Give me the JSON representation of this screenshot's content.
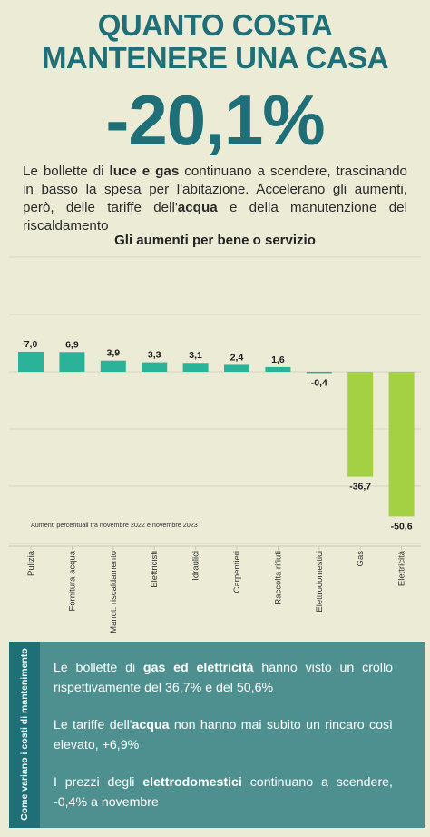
{
  "header": {
    "title_line1": "QUANTO COSTA",
    "title_line2": "MANTENERE UNA CASA",
    "headline_value": "-20,1%"
  },
  "intro": {
    "p1": "Le bollette di ",
    "b1": "luce e gas",
    "p2": " continuano a scendere, trascinando in basso la spesa per l'abitazione. Accelerano gli aumenti, però, delle tariffe dell'",
    "b2": "acqua",
    "p3": " e della manutenzione del riscaldamento"
  },
  "chart_data": {
    "type": "bar",
    "title": "Gli aumenti per bene o servizio",
    "note": "Aumenti percentuali tra novembre 2022 e novembre 2023",
    "categories": [
      "Pulizia",
      "Fornitura acqua",
      "Manut. riscaldamento",
      "Elettricisti",
      "Idraulici",
      "Carpentieri",
      "Raccolta rifiuti",
      "Elettrodomestici",
      "Gas",
      "Elettricità"
    ],
    "values": [
      7.0,
      6.9,
      3.9,
      3.3,
      3.1,
      2.4,
      1.6,
      -0.4,
      -36.7,
      -50.6
    ],
    "value_labels": [
      "7,0",
      "6,9",
      "3,9",
      "3,3",
      "3,1",
      "2,4",
      "1,6",
      "-0,4",
      "-36,7",
      "-50,6"
    ],
    "colors": {
      "positive": "#2bb39a",
      "negative_small": "#2bb39a",
      "negative_large": "#a4d144"
    },
    "ylim": [
      -60,
      40
    ],
    "grid": true
  },
  "footer": {
    "side_label": "Come variano i costi di mantenimento",
    "items": [
      {
        "a": "Le bollette di ",
        "b": "gas ed elettricità",
        "c": " hanno visto un crollo rispettivamente del 36,7% e del 50,6%"
      },
      {
        "a": "Le tariffe dell'",
        "b": "acqua",
        "c": " non hanno mai subito un rincaro così elevato, +6,9%"
      },
      {
        "a": "I prezzi degli ",
        "b": "elettrodomestici",
        "c": " continuano a scendere, -0,4% a novembre"
      }
    ]
  }
}
